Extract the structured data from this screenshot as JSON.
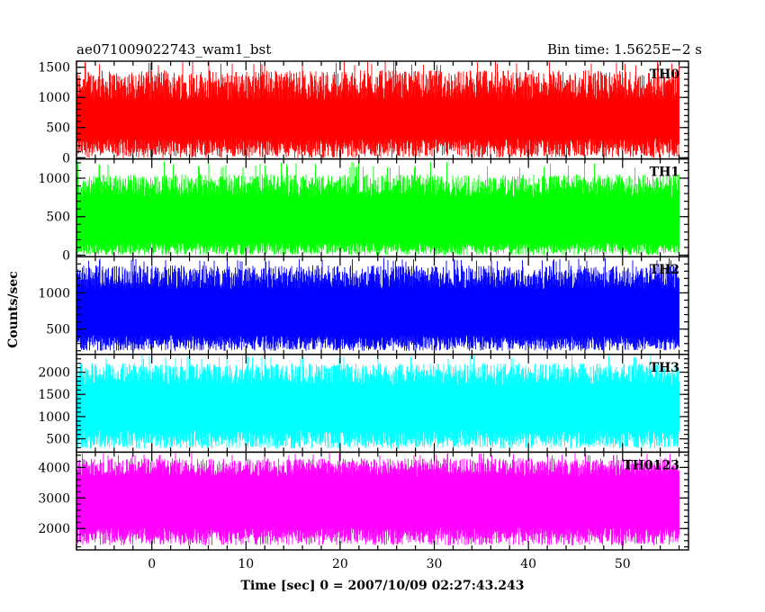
{
  "chart_data": {
    "type": "line",
    "title_left": "ae071009022743_wam1_bst",
    "title_right": "Bin time: 1.5625E−2 s",
    "xlabel": "Time [sec] 0 = 2007/10/09 02:27:43.243",
    "ylabel": "Counts/sec",
    "xlim": [
      -8,
      57
    ],
    "x_ticks": [
      "0",
      "10",
      "20",
      "30",
      "40",
      "50"
    ],
    "x_tick_values": [
      0,
      10,
      20,
      30,
      40,
      50
    ],
    "data_range": [
      -8,
      56
    ],
    "panels": [
      {
        "name": "TH0",
        "color": "#ff0000",
        "ylim": [
          -20,
          1600
        ],
        "y_ticks": [
          "0",
          "500",
          "1000",
          "1500"
        ],
        "y_tick_values": [
          0,
          500,
          1000,
          1500
        ],
        "band_low": [
          0,
          320
        ],
        "band_high": [
          950,
          1450
        ],
        "spike_max": 1600
      },
      {
        "name": "TH1",
        "color": "#00ff00",
        "ylim": [
          -20,
          1250
        ],
        "y_ticks": [
          "0",
          "500",
          "1000"
        ],
        "y_tick_values": [
          0,
          500,
          1000
        ],
        "band_low": [
          0,
          170
        ],
        "band_high": [
          750,
          1050
        ],
        "spike_max": 1220
      },
      {
        "name": "TH2",
        "color": "#0000ff",
        "ylim": [
          150,
          1500
        ],
        "y_ticks": [
          "500",
          "1000"
        ],
        "y_tick_values": [
          500,
          1000
        ],
        "band_low": [
          200,
          420
        ],
        "band_high": [
          1050,
          1380
        ],
        "spike_max": 1480
      },
      {
        "name": "TH3",
        "color": "#00ffff",
        "ylim": [
          200,
          2400
        ],
        "y_ticks": [
          "500",
          "1000",
          "1500",
          "2000"
        ],
        "y_tick_values": [
          500,
          1000,
          1500,
          2000
        ],
        "band_low": [
          280,
          700
        ],
        "band_high": [
          1700,
          2200
        ],
        "spike_max": 2380
      },
      {
        "name": "TH0123",
        "color": "#ff00ff",
        "ylim": [
          1300,
          4500
        ],
        "y_ticks": [
          "2000",
          "3000",
          "4000"
        ],
        "y_tick_values": [
          2000,
          3000,
          4000
        ],
        "band_low": [
          1450,
          2050
        ],
        "band_high": [
          3700,
          4300
        ],
        "spike_max": 4480
      }
    ]
  }
}
